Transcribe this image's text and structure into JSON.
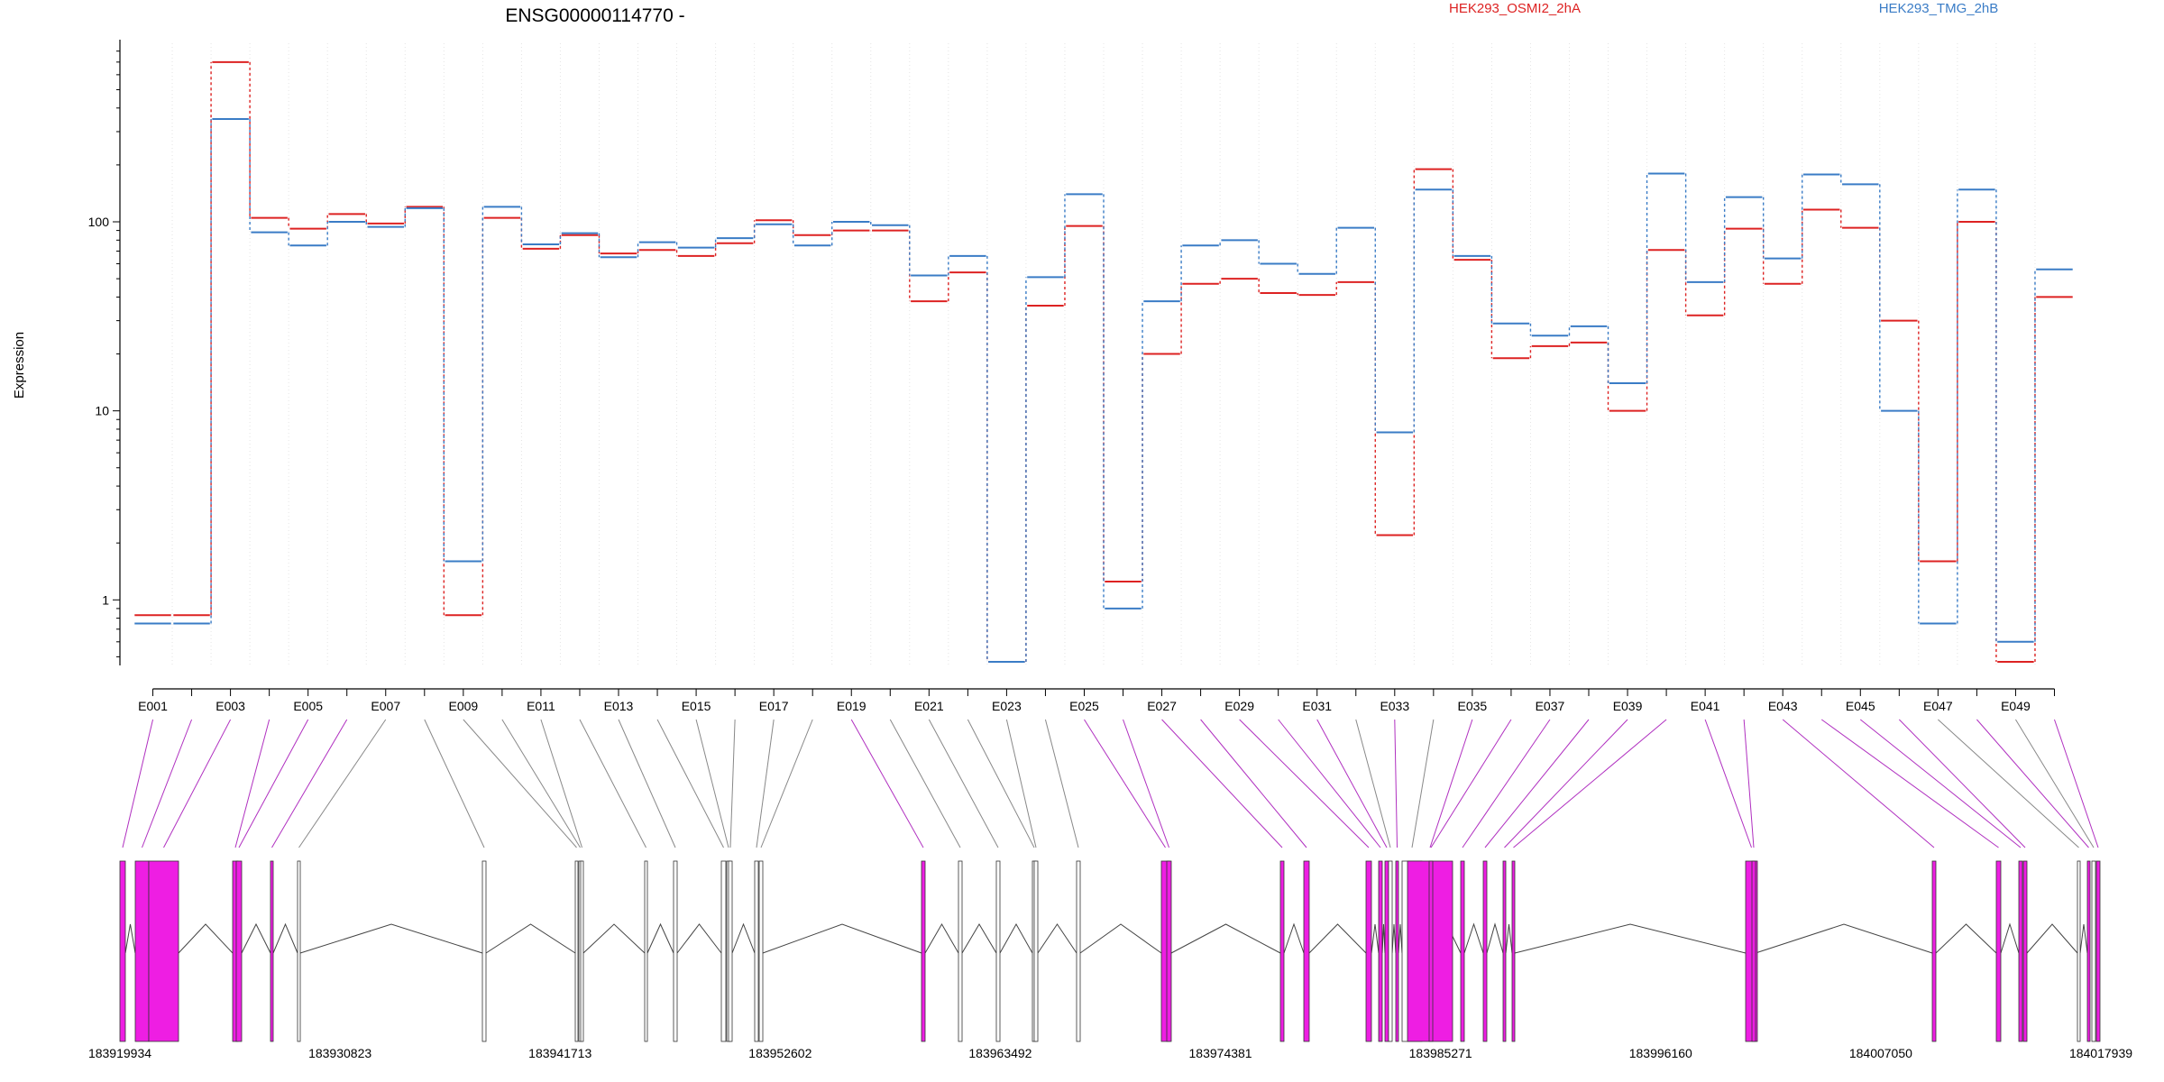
{
  "chart_data": {
    "type": "line",
    "title": "ENSG00000114770 -",
    "ylabel": "Expression",
    "yscale": "log",
    "ylim": [
      0.45,
      880
    ],
    "yticks": [
      1,
      10,
      100
    ],
    "categories": [
      "E001",
      "E002",
      "E003",
      "E004",
      "E005",
      "E006",
      "E007",
      "E008",
      "E009",
      "E010",
      "E011",
      "E012",
      "E013",
      "E014",
      "E015",
      "E016",
      "E017",
      "E018",
      "E019",
      "E020",
      "E021",
      "E022",
      "E023",
      "E024",
      "E025",
      "E026",
      "E027",
      "E028",
      "E029",
      "E030",
      "E031",
      "E032",
      "E033",
      "E034",
      "E035",
      "E036",
      "E037",
      "E038",
      "E039",
      "E040",
      "E041",
      "E042",
      "E043",
      "E044",
      "E045",
      "E046",
      "E047",
      "E048",
      "E049",
      "E050"
    ],
    "xtick_labels": [
      "E001",
      "E003",
      "E005",
      "E007",
      "E009",
      "E011",
      "E013",
      "E015",
      "E017",
      "E019",
      "E021",
      "E023",
      "E025",
      "E027",
      "E029",
      "E031",
      "E033",
      "E035",
      "E037",
      "E039",
      "E041",
      "E043",
      "E045",
      "E047",
      "E049"
    ],
    "series": [
      {
        "name": "HEK293_OSMI2_2hA",
        "color": "#dd2222",
        "values": [
          0.83,
          0.83,
          700,
          105,
          92,
          110,
          98,
          120,
          0.83,
          105,
          72,
          85,
          68,
          71,
          66,
          77,
          102,
          85,
          90,
          90,
          38,
          54,
          0.47,
          36,
          95,
          1.25,
          20,
          47,
          50,
          42,
          41,
          48,
          2.2,
          190,
          63,
          19,
          22,
          23,
          10,
          71,
          32,
          92,
          47,
          116,
          93,
          30,
          1.6,
          100,
          0.47,
          40
        ]
      },
      {
        "name": "HEK293_TMG_2hB",
        "color": "#3a7cc6",
        "values": [
          0.75,
          0.75,
          350,
          88,
          75,
          100,
          94,
          118,
          1.6,
          120,
          76,
          87,
          65,
          78,
          73,
          82,
          97,
          75,
          100,
          96,
          52,
          66,
          0.47,
          51,
          140,
          0.9,
          38,
          75,
          80,
          60,
          53,
          93,
          7.7,
          148,
          66,
          29,
          25,
          28,
          14,
          180,
          48,
          135,
          64,
          178,
          158,
          10,
          0.75,
          148,
          0.6,
          56
        ]
      }
    ],
    "genomic_axis": {
      "labels": [
        "183919934",
        "183930823",
        "183941713",
        "183952602",
        "183963492",
        "183974381",
        "183985271",
        "183996160",
        "184007050",
        "184017939"
      ]
    },
    "exon_model": {
      "highlight_color": "#ee1ee3",
      "exons": [
        {
          "id": "E001",
          "highlighted": true
        },
        {
          "id": "E002",
          "highlighted": true
        },
        {
          "id": "E003",
          "highlighted": true
        },
        {
          "id": "E004",
          "highlighted": true
        },
        {
          "id": "E005",
          "highlighted": true
        },
        {
          "id": "E006",
          "highlighted": true
        },
        {
          "id": "E007",
          "highlighted": false
        },
        {
          "id": "E008",
          "highlighted": false
        },
        {
          "id": "E009",
          "highlighted": false
        },
        {
          "id": "E010",
          "highlighted": false
        },
        {
          "id": "E011",
          "highlighted": false
        },
        {
          "id": "E012",
          "highlighted": false
        },
        {
          "id": "E013",
          "highlighted": false
        },
        {
          "id": "E014",
          "highlighted": false
        },
        {
          "id": "E015",
          "highlighted": false
        },
        {
          "id": "E016",
          "highlighted": false
        },
        {
          "id": "E017",
          "highlighted": false
        },
        {
          "id": "E018",
          "highlighted": false
        },
        {
          "id": "E019",
          "highlighted": true
        },
        {
          "id": "E020",
          "highlighted": false
        },
        {
          "id": "E021",
          "highlighted": false
        },
        {
          "id": "E022",
          "highlighted": false
        },
        {
          "id": "E023",
          "highlighted": false
        },
        {
          "id": "E024",
          "highlighted": false
        },
        {
          "id": "E025",
          "highlighted": true
        },
        {
          "id": "E026",
          "highlighted": true
        },
        {
          "id": "E027",
          "highlighted": true
        },
        {
          "id": "E028",
          "highlighted": true
        },
        {
          "id": "E029",
          "highlighted": true
        },
        {
          "id": "E030",
          "highlighted": true
        },
        {
          "id": "E031",
          "highlighted": true
        },
        {
          "id": "E032",
          "highlighted": false
        },
        {
          "id": "E033",
          "highlighted": true
        },
        {
          "id": "E034",
          "highlighted": false
        },
        {
          "id": "E035",
          "highlighted": true
        },
        {
          "id": "E036",
          "highlighted": true
        },
        {
          "id": "E037",
          "highlighted": true
        },
        {
          "id": "E038",
          "highlighted": true
        },
        {
          "id": "E039",
          "highlighted": true
        },
        {
          "id": "E040",
          "highlighted": true
        },
        {
          "id": "E041",
          "highlighted": true
        },
        {
          "id": "E042",
          "highlighted": true
        },
        {
          "id": "E043",
          "highlighted": true
        },
        {
          "id": "E044",
          "highlighted": true
        },
        {
          "id": "E045",
          "highlighted": true
        },
        {
          "id": "E046",
          "highlighted": true
        },
        {
          "id": "E047",
          "highlighted": false
        },
        {
          "id": "E048",
          "highlighted": true
        },
        {
          "id": "E049",
          "highlighted": false
        },
        {
          "id": "E050",
          "highlighted": true
        }
      ]
    },
    "grid": "vertical-dotted",
    "legend_position": "top-right"
  }
}
